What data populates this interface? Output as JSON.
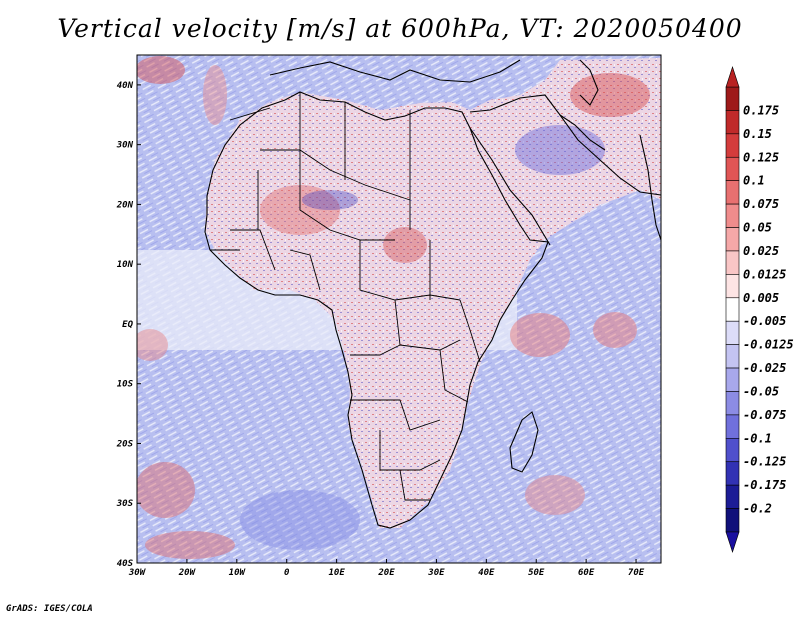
{
  "title": "Vertical velocity [m/s] at 600hPa, VT: 2020050400",
  "footer": "GrADS: IGES/COLA",
  "map": {
    "lon_labels": [
      "30W",
      "20W",
      "10W",
      "0",
      "10E",
      "20E",
      "30E",
      "40E",
      "50E",
      "60E",
      "70E"
    ],
    "lat_labels": [
      "40N",
      "30N",
      "20N",
      "10N",
      "EQ",
      "10S",
      "20S",
      "30S",
      "40S"
    ],
    "lon_range": [
      -30,
      75
    ],
    "lat_range": [
      -40,
      45
    ]
  },
  "colorbar": {
    "labels": [
      "0.175",
      "0.15",
      "0.125",
      "0.1",
      "0.075",
      "0.05",
      "0.025",
      "0.0125",
      "0.005",
      "-0.005",
      "-0.0125",
      "-0.025",
      "-0.05",
      "-0.075",
      "-0.1",
      "-0.125",
      "-0.175",
      "-0.2"
    ],
    "colors": [
      "#9e1a1a",
      "#c02a2a",
      "#d43c3c",
      "#e05555",
      "#e87070",
      "#f08c8c",
      "#f5a8a8",
      "#f9c6c6",
      "#fde4e4",
      "#ffffff",
      "#dcdcf8",
      "#c4c4f2",
      "#a8a8ec",
      "#8c8ce4",
      "#7070dc",
      "#5050cc",
      "#3232b4",
      "#1c1c96",
      "#10107a"
    ]
  },
  "palette": {
    "ocean_blue": "#b8bff0",
    "ocean_white": "#eef0fb",
    "land_red": "#f2a4a4",
    "land_blue": "#a0a8ec",
    "coast": "#000000"
  }
}
